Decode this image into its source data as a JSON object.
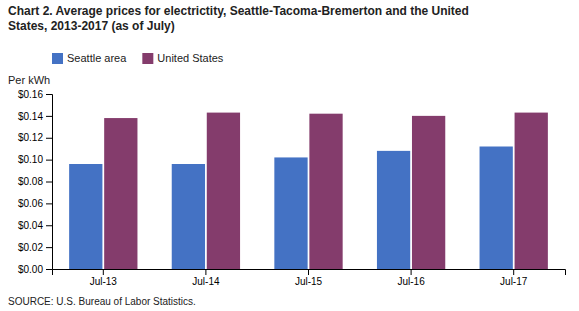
{
  "chart_data": {
    "type": "bar",
    "title": [
      "Chart 2. Average prices for electrictity, Seattle-Tacoma-Bremerton and the United",
      "States, 2013-2017  (as of July)"
    ],
    "ylabel": "Per kWh",
    "annotations": [
      "SOURCE: U.S. Bureau of Labor Statistics."
    ],
    "categories": [
      "Jul-13",
      "Jul-14",
      "Jul-15",
      "Jul-16",
      "Jul-17"
    ],
    "series": [
      {
        "name": "Seattle area",
        "color": "#4472C4",
        "values": [
          0.096,
          0.096,
          0.102,
          0.108,
          0.112
        ]
      },
      {
        "name": "United States",
        "color": "#843C6C",
        "values": [
          0.138,
          0.143,
          0.142,
          0.14,
          0.143
        ]
      }
    ],
    "ylim": [
      0,
      0.16
    ],
    "yticks": [
      {
        "value": 0.0,
        "label": "$0.00"
      },
      {
        "value": 0.02,
        "label": "$0.02"
      },
      {
        "value": 0.04,
        "label": "$0.04"
      },
      {
        "value": 0.06,
        "label": "$0.06"
      },
      {
        "value": 0.08,
        "label": "$0.08"
      },
      {
        "value": 0.1,
        "label": "$0.10"
      },
      {
        "value": 0.12,
        "label": "$0.12"
      },
      {
        "value": 0.14,
        "label": "$0.14"
      },
      {
        "value": 0.16,
        "label": "$0.16"
      }
    ],
    "grid": false,
    "legend": "upper left"
  }
}
